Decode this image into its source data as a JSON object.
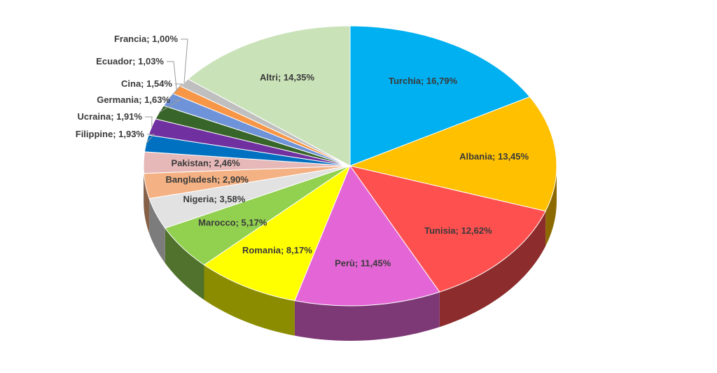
{
  "chart_data": {
    "type": "pie",
    "title": "",
    "style": "3d-exploded-depth",
    "slices": [
      {
        "name": "Turchia",
        "label": "Turchia; 16,79%",
        "value": 16.79,
        "color": "#00B0F0"
      },
      {
        "name": "Albania",
        "label": "Albania; 13,45%",
        "value": 13.45,
        "color": "#FFC000"
      },
      {
        "name": "Tunisia",
        "label": "Tunisia; 12,62%",
        "value": 12.62,
        "color": "#FF5050"
      },
      {
        "name": "Perù",
        "label": "Perù; 11,45%",
        "value": 11.45,
        "color": "#E466D6"
      },
      {
        "name": "Romania",
        "label": "Romania; 8,17%",
        "value": 8.17,
        "color": "#FFFF00"
      },
      {
        "name": "Marocco",
        "label": "Marocco; 5,17%",
        "value": 5.17,
        "color": "#92D050"
      },
      {
        "name": "Nigeria",
        "label": "Nigeria; 3,58%",
        "value": 3.58,
        "color": "#E2E2E2"
      },
      {
        "name": "Bangladesh",
        "label": "Bangladesh; 2,90%",
        "value": 2.9,
        "color": "#F4B183"
      },
      {
        "name": "Pakistan",
        "label": "Pakistan; 2,46%",
        "value": 2.46,
        "color": "#E6B8B7"
      },
      {
        "name": "Filippine",
        "label": "Filippine; 1,93%",
        "value": 1.93,
        "color": "#0070C0"
      },
      {
        "name": "Ucraina",
        "label": "Ucraina; 1,91%",
        "value": 1.91,
        "color": "#7030A0"
      },
      {
        "name": "Germania",
        "label": "Germania; 1,63%",
        "value": 1.63,
        "color": "#38662A"
      },
      {
        "name": "Cina",
        "label": "Cina; 1,54%",
        "value": 1.54,
        "color": "#6F93D8"
      },
      {
        "name": "Ecuador",
        "label": "Ecuador; 1,03%",
        "value": 1.03,
        "color": "#F79646"
      },
      {
        "name": "Francia",
        "label": "Francia; 1,00%",
        "value": 1.0,
        "color": "#BFBFBF"
      },
      {
        "name": "Altri",
        "label": "Altri; 14,35%",
        "value": 14.35,
        "color": "#C9E2B8"
      }
    ]
  }
}
